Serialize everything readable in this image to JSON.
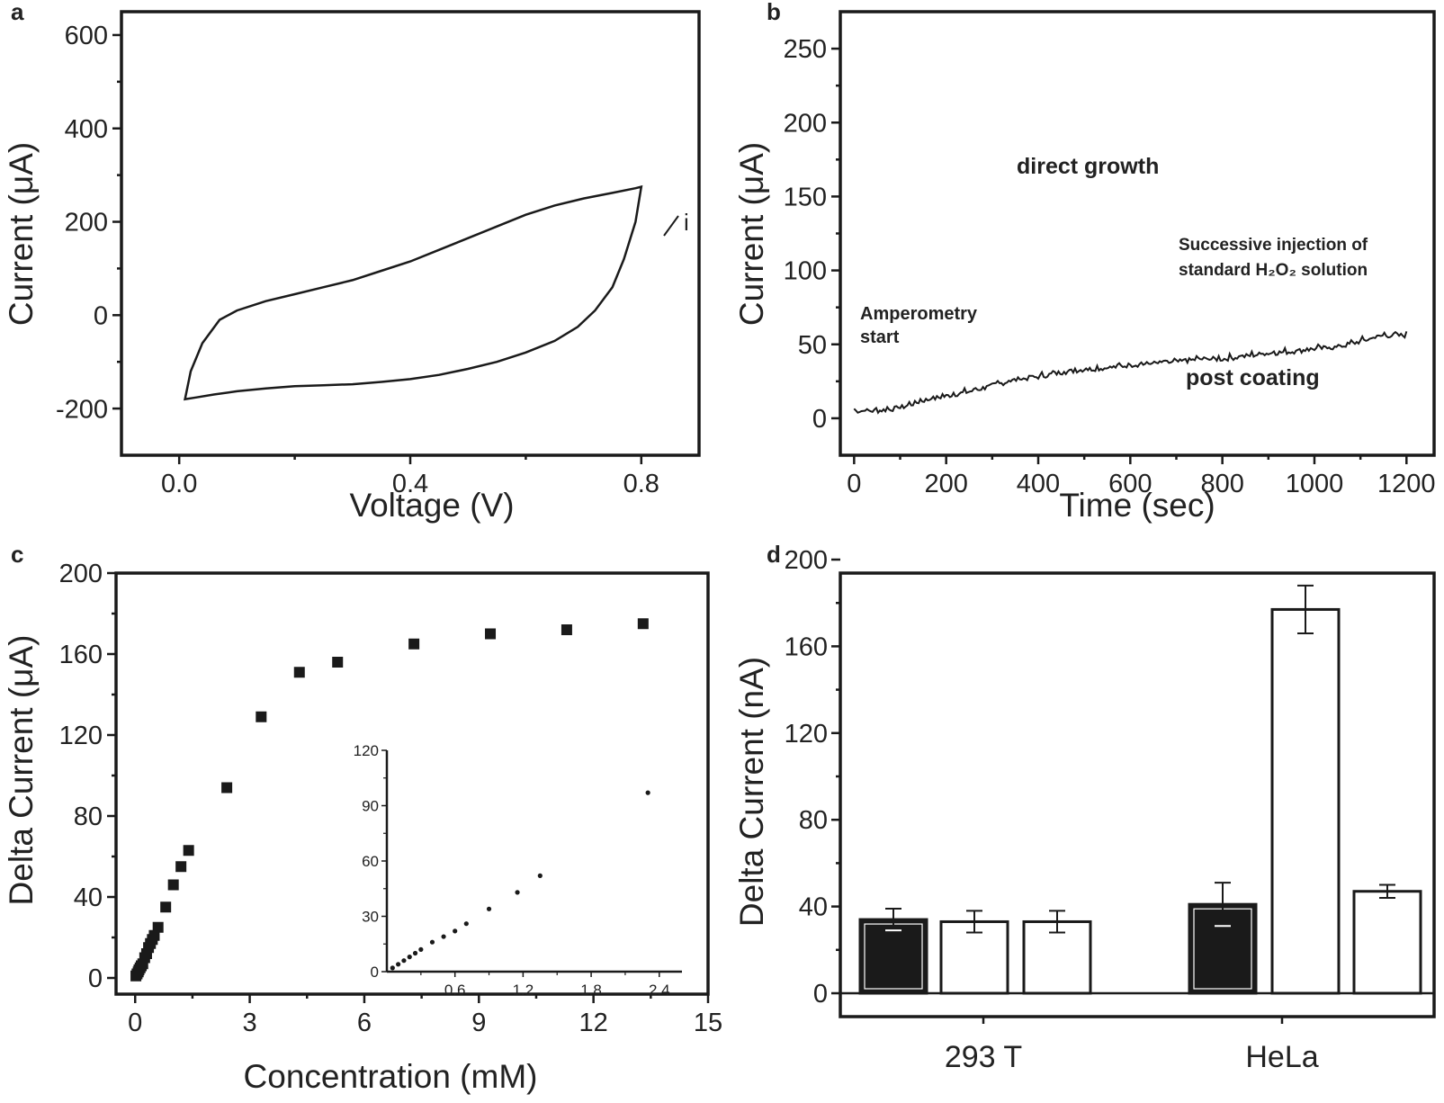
{
  "chart_data": [
    {
      "panel": "a",
      "type": "line",
      "xlabel": "Voltage (V)",
      "ylabel": "Current (μA)",
      "xlim": [
        -0.1,
        0.9
      ],
      "ylim": [
        -300,
        650
      ],
      "xticks": [
        0.0,
        0.4,
        0.8
      ],
      "xtick_labels": [
        "0.0",
        "0.4",
        "0.8"
      ],
      "yticks": [
        -200,
        0,
        200,
        400,
        600
      ],
      "ytick_labels": [
        "-200",
        "0",
        "200",
        "400",
        "600"
      ],
      "annotation": "i",
      "series": [
        {
          "x": [
            0.01,
            0.02,
            0.04,
            0.07,
            0.1,
            0.15,
            0.2,
            0.25,
            0.3,
            0.35,
            0.4,
            0.45,
            0.5,
            0.55,
            0.6,
            0.65,
            0.7,
            0.75,
            0.79,
            0.8,
            0.79,
            0.77,
            0.75,
            0.72,
            0.69,
            0.65,
            0.6,
            0.55,
            0.5,
            0.45,
            0.4,
            0.35,
            0.3,
            0.25,
            0.2,
            0.15,
            0.1,
            0.06,
            0.03,
            0.01
          ],
          "y": [
            -180,
            -120,
            -60,
            -10,
            10,
            30,
            45,
            60,
            75,
            95,
            115,
            140,
            165,
            190,
            215,
            235,
            250,
            262,
            272,
            275,
            200,
            120,
            60,
            10,
            -25,
            -55,
            -80,
            -100,
            -115,
            -128,
            -137,
            -143,
            -148,
            -150,
            -152,
            -157,
            -163,
            -170,
            -176,
            -180
          ]
        }
      ]
    },
    {
      "panel": "b",
      "type": "line",
      "xlabel": "Time (sec)",
      "ylabel": "Current (μA)",
      "xlim": [
        -30,
        1260
      ],
      "ylim": [
        -25,
        275
      ],
      "xticks": [
        0,
        200,
        400,
        600,
        800,
        1000,
        1200
      ],
      "xtick_labels": [
        "0",
        "200",
        "400",
        "600",
        "800",
        "1000",
        "1200"
      ],
      "yticks": [
        0,
        50,
        100,
        150,
        200,
        250
      ],
      "ytick_labels": [
        "0",
        "50",
        "100",
        "150",
        "200",
        "250"
      ],
      "annotations": [
        "direct growth",
        "Amperometry",
        "start",
        "Successive injection of",
        "standard H₂O₂ solution",
        "post coating"
      ],
      "series": [
        {
          "x": [
            0,
            50,
            100,
            150,
            200,
            250,
            300,
            350,
            400,
            450,
            500,
            550,
            600,
            650,
            700,
            750,
            800,
            850,
            900,
            950,
            1000,
            1050,
            1100,
            1150,
            1200
          ],
          "y": [
            5,
            5,
            7,
            12,
            15,
            18,
            22,
            26,
            28,
            31,
            33,
            34,
            36,
            37,
            38,
            40,
            40,
            42,
            44,
            45,
            47,
            48,
            52,
            56,
            56
          ]
        }
      ]
    },
    {
      "panel": "c",
      "type": "scatter",
      "xlabel": "Concentration (mM)",
      "ylabel": "Delta Current (μA)",
      "xlim": [
        -0.5,
        15
      ],
      "ylim": [
        -8,
        200
      ],
      "xticks": [
        0,
        3,
        6,
        9,
        12,
        15
      ],
      "xtick_labels": [
        "0",
        "3",
        "6",
        "9",
        "12",
        "15"
      ],
      "yticks": [
        0,
        40,
        80,
        120,
        160,
        200
      ],
      "ytick_labels": [
        "0",
        "40",
        "80",
        "120",
        "160",
        "200"
      ],
      "x": [
        0.02,
        0.05,
        0.08,
        0.1,
        0.13,
        0.16,
        0.2,
        0.25,
        0.3,
        0.35,
        0.4,
        0.45,
        0.5,
        0.6,
        0.8,
        1.0,
        1.2,
        1.4,
        2.4,
        3.3,
        4.3,
        5.3,
        7.3,
        9.3,
        11.3,
        13.3
      ],
      "y": [
        1,
        2,
        3,
        4,
        5,
        6,
        7,
        10,
        12,
        15,
        17,
        19,
        21,
        25,
        35,
        46,
        55,
        63,
        94,
        129,
        151,
        156,
        165,
        170,
        172,
        175
      ],
      "inset": {
        "type": "scatter",
        "xlim": [
          0,
          2.6
        ],
        "ylim": [
          0,
          120
        ],
        "xticks": [
          0.6,
          1.2,
          1.8,
          2.4
        ],
        "xtick_labels": [
          "0.6",
          "1.2",
          "1.8",
          "2.4"
        ],
        "yticks": [
          0,
          30,
          60,
          90,
          120
        ],
        "ytick_labels": [
          "0",
          "30",
          "60",
          "90",
          "120"
        ],
        "x": [
          0.05,
          0.1,
          0.15,
          0.2,
          0.25,
          0.3,
          0.4,
          0.5,
          0.6,
          0.7,
          0.9,
          1.15,
          1.35,
          2.3
        ],
        "y": [
          2,
          4,
          6,
          8,
          10,
          12,
          16,
          19,
          22,
          26,
          34,
          43,
          52,
          97
        ]
      }
    },
    {
      "panel": "d",
      "type": "bar",
      "ylabel": "Delta Current (nA)",
      "ylim": [
        0,
        200
      ],
      "yticks": [
        0,
        40,
        80,
        120,
        160,
        200
      ],
      "ytick_labels": [
        "0",
        "40",
        "80",
        "120",
        "160",
        "200"
      ],
      "categories": [
        "293 T",
        "HeLa"
      ],
      "bars": [
        {
          "group": "293 T",
          "value": 34,
          "err": 5,
          "fill": "#1a1a1a"
        },
        {
          "group": "293 T",
          "value": 33,
          "err": 5,
          "fill": "#ffffff"
        },
        {
          "group": "293 T",
          "value": 33,
          "err": 5,
          "fill": "#ffffff"
        },
        {
          "group": "HeLa",
          "value": 41,
          "err": 10,
          "fill": "#1a1a1a"
        },
        {
          "group": "HeLa",
          "value": 177,
          "err": 11,
          "fill": "#ffffff"
        },
        {
          "group": "HeLa",
          "value": 47,
          "err": 3,
          "fill": "#ffffff"
        }
      ]
    }
  ],
  "panel_labels": [
    "a",
    "b",
    "c",
    "d"
  ]
}
